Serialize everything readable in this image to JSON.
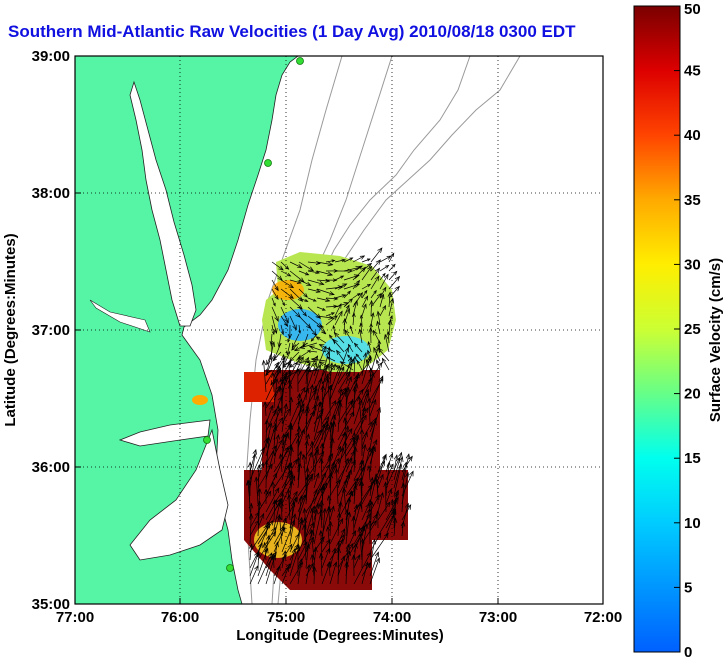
{
  "title": "Southern Mid-Atlantic Raw Velocities (1 Day Avg) 2010/08/18 0300 EDT",
  "xlabel": "Longitude (Degrees:Minutes)",
  "ylabel": "Latitude (Degrees:Minutes)",
  "colorbar_label": "Surface Velocity (cm/s)",
  "x_ticks": [
    "77:00",
    "76:00",
    "75:00",
    "74:00",
    "73:00",
    "72:00"
  ],
  "y_ticks": [
    "39:00",
    "38:00",
    "37:00",
    "36:00",
    "35:00"
  ],
  "colorbar_ticks": [
    "0",
    "5",
    "10",
    "15",
    "20",
    "25",
    "30",
    "35",
    "40",
    "45",
    "50"
  ],
  "colors": {
    "land": "#55f5a5",
    "title": "#1010e0",
    "bathymetry": "#9a9a9a",
    "station": "#33dd33"
  },
  "chart_data": {
    "type": "heatmap",
    "xlim": [
      -77,
      -72
    ],
    "ylim": [
      35,
      39
    ],
    "colorbar_range": [
      0,
      50
    ],
    "colormap": "jet",
    "grid": true,
    "legend_placement": "right"
  }
}
